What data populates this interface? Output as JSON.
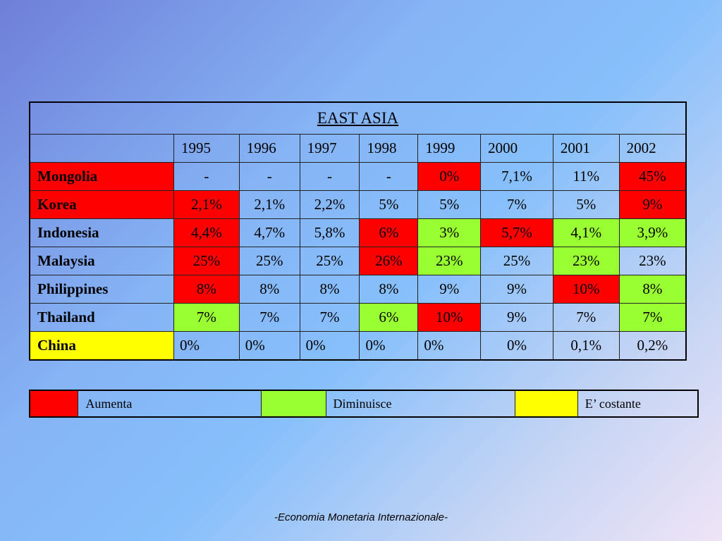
{
  "table": {
    "title": "EAST ASIA",
    "years": [
      "1995",
      "1996",
      "1997",
      "1998",
      "1999",
      "2000",
      "2001",
      "2002"
    ],
    "rows": [
      {
        "country": "Mongolia",
        "country_color": "red",
        "values": [
          {
            "v": "-",
            "c": ""
          },
          {
            "v": "-",
            "c": ""
          },
          {
            "v": "-",
            "c": ""
          },
          {
            "v": "-",
            "c": ""
          },
          {
            "v": "0%",
            "c": "red"
          },
          {
            "v": "7,1%",
            "c": ""
          },
          {
            "v": "11%",
            "c": ""
          },
          {
            "v": "45%",
            "c": "red"
          }
        ]
      },
      {
        "country": "Korea",
        "country_color": "red",
        "values": [
          {
            "v": "2,1%",
            "c": "red"
          },
          {
            "v": "2,1%",
            "c": ""
          },
          {
            "v": "2,2%",
            "c": ""
          },
          {
            "v": "5%",
            "c": ""
          },
          {
            "v": "5%",
            "c": ""
          },
          {
            "v": "7%",
            "c": ""
          },
          {
            "v": "5%",
            "c": ""
          },
          {
            "v": "9%",
            "c": "red"
          }
        ]
      },
      {
        "country": "Indonesia",
        "country_color": "",
        "values": [
          {
            "v": "4,4%",
            "c": "red"
          },
          {
            "v": "4,7%",
            "c": ""
          },
          {
            "v": "5,8%",
            "c": ""
          },
          {
            "v": "6%",
            "c": "red"
          },
          {
            "v": "3%",
            "c": "green"
          },
          {
            "v": "5,7%",
            "c": "red"
          },
          {
            "v": "4,1%",
            "c": "green"
          },
          {
            "v": "3,9%",
            "c": "green"
          }
        ]
      },
      {
        "country": "Malaysia",
        "country_color": "",
        "values": [
          {
            "v": "25%",
            "c": "red"
          },
          {
            "v": "25%",
            "c": ""
          },
          {
            "v": "25%",
            "c": ""
          },
          {
            "v": "26%",
            "c": "red"
          },
          {
            "v": "23%",
            "c": "green"
          },
          {
            "v": "25%",
            "c": ""
          },
          {
            "v": "23%",
            "c": "green"
          },
          {
            "v": "23%",
            "c": ""
          }
        ]
      },
      {
        "country": "Philippines",
        "country_color": "",
        "values": [
          {
            "v": "8%",
            "c": "red"
          },
          {
            "v": "8%",
            "c": ""
          },
          {
            "v": "8%",
            "c": ""
          },
          {
            "v": "8%",
            "c": ""
          },
          {
            "v": "9%",
            "c": ""
          },
          {
            "v": "9%",
            "c": ""
          },
          {
            "v": "10%",
            "c": "red"
          },
          {
            "v": "8%",
            "c": "green"
          }
        ]
      },
      {
        "country": "Thailand",
        "country_color": "",
        "values": [
          {
            "v": "7%",
            "c": "green"
          },
          {
            "v": "7%",
            "c": ""
          },
          {
            "v": "7%",
            "c": ""
          },
          {
            "v": "6%",
            "c": "green"
          },
          {
            "v": "10%",
            "c": "red"
          },
          {
            "v": "9%",
            "c": ""
          },
          {
            "v": "7%",
            "c": ""
          },
          {
            "v": "7%",
            "c": "green"
          }
        ]
      },
      {
        "country": "China",
        "country_color": "yellow",
        "values": [
          {
            "v": "0%",
            "c": "",
            "l": true
          },
          {
            "v": "0%",
            "c": "",
            "l": true
          },
          {
            "v": "0%",
            "c": "",
            "l": true
          },
          {
            "v": "0%",
            "c": "",
            "l": true
          },
          {
            "v": "0%",
            "c": "",
            "l": true
          },
          {
            "v": "0%",
            "c": ""
          },
          {
            "v": "0,1%",
            "c": ""
          },
          {
            "v": "0,2%",
            "c": ""
          }
        ]
      }
    ]
  },
  "legend": {
    "items": [
      {
        "color": "red",
        "label": "Aumenta"
      },
      {
        "color": "green",
        "label": "Diminuisce"
      },
      {
        "color": "yellow",
        "label": "E’ costante"
      }
    ]
  },
  "colors": {
    "red": "#ff0000",
    "green": "#99ff33",
    "yellow": "#ffff00"
  },
  "footer": "-Economia Monetaria Internazionale-"
}
